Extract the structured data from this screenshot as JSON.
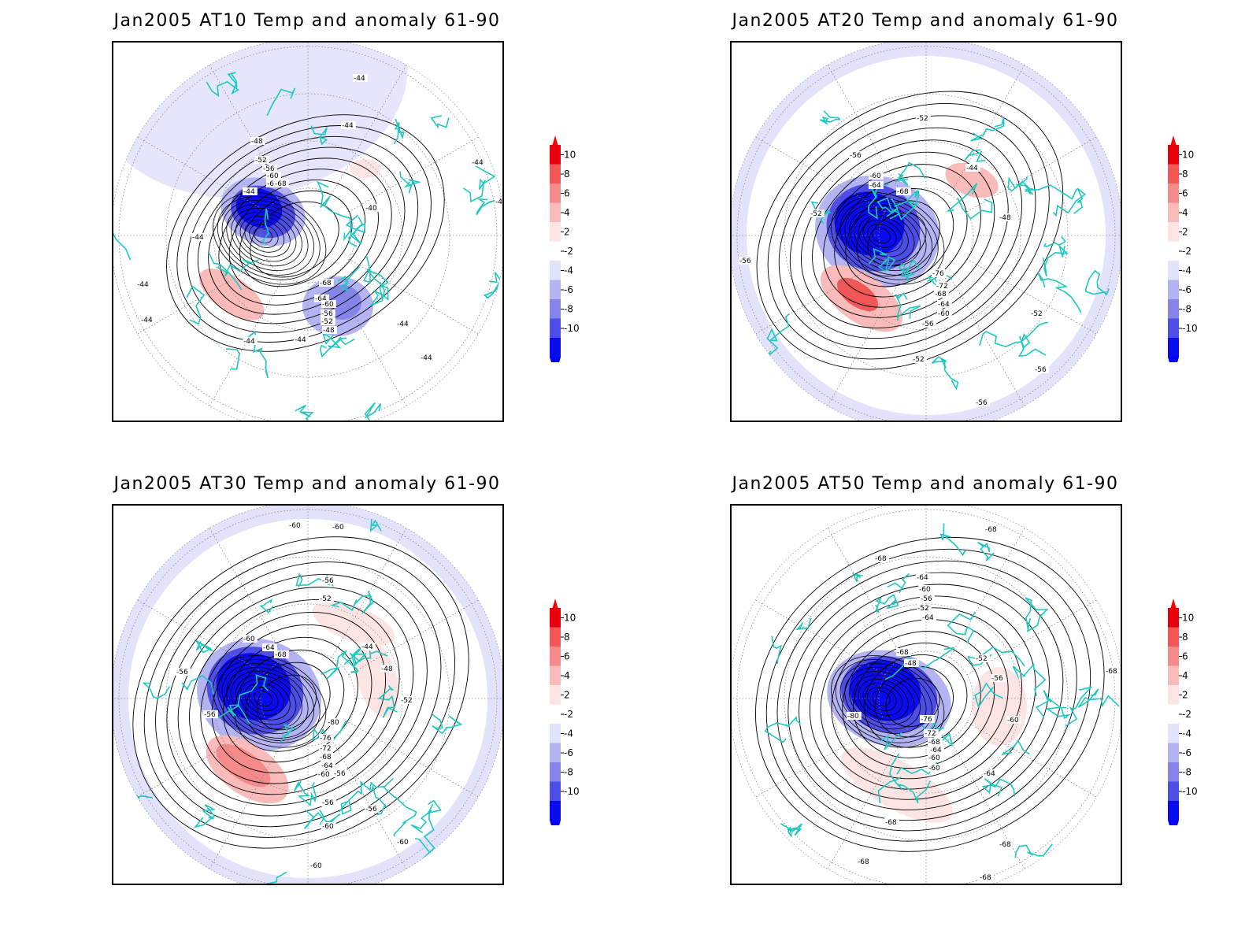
{
  "panels": [
    {
      "title": "Jan2005 AT10 Temp and anomaly 61-90",
      "contour_labels": [
        "-44",
        "-44",
        "-44",
        "-44",
        "-44",
        "-44",
        "-44",
        "-44",
        "-44",
        "-44",
        "-44",
        "-44",
        "-48",
        "-52",
        "-56",
        "-60",
        "-64",
        "-68",
        "-68",
        "-64",
        "-60",
        "-56",
        "-52",
        "-48",
        "-40"
      ],
      "anomaly_features": [
        {
          "sign": "neg",
          "level": 10
        },
        {
          "sign": "neg",
          "level": 8
        },
        {
          "sign": "pos",
          "level": 4
        },
        {
          "sign": "neg",
          "level": 4
        }
      ]
    },
    {
      "title": "Jan2005 AT20 Temp and anomaly 61-90",
      "contour_labels": [
        "-52",
        "-56",
        "-60",
        "-64",
        "-68",
        "-44",
        "-48",
        "-52",
        "-56",
        "-76",
        "-72",
        "-68",
        "-64",
        "-60",
        "-56",
        "-52",
        "-52",
        "-56",
        "-56"
      ],
      "anomaly_features": [
        {
          "sign": "neg",
          "level": 10
        },
        {
          "sign": "pos",
          "level": 6
        },
        {
          "sign": "pos",
          "level": 2
        },
        {
          "sign": "neg",
          "level": 2
        }
      ]
    },
    {
      "title": "Jan2005 AT30 Temp and anomaly 61-90",
      "contour_labels": [
        "-60",
        "-60",
        "-56",
        "-52",
        "-60",
        "-64",
        "-68",
        "-44",
        "-48",
        "-52",
        "-56",
        "-56",
        "-80",
        "-76",
        "-72",
        "-68",
        "-64",
        "-60",
        "-56",
        "-56",
        "-56",
        "-60",
        "-60",
        "-60"
      ],
      "anomaly_features": [
        {
          "sign": "neg",
          "level": 10
        },
        {
          "sign": "pos",
          "level": 4
        },
        {
          "sign": "pos",
          "level": 2
        },
        {
          "sign": "neg",
          "level": 2
        }
      ]
    },
    {
      "title": "Jan2005 AT50 Temp and anomaly 61-90",
      "contour_labels": [
        "-68",
        "-68",
        "-64",
        "-60",
        "-56",
        "-52",
        "-64",
        "-68",
        "-48",
        "-52",
        "-56",
        "-60",
        "-80",
        "-76",
        "-72",
        "-68",
        "-64",
        "-60",
        "-60",
        "-64",
        "-68",
        "-68",
        "-68",
        "-68",
        "-68"
      ],
      "anomaly_features": [
        {
          "sign": "neg",
          "level": 10
        },
        {
          "sign": "pos",
          "level": 2
        },
        {
          "sign": "neg",
          "level": 2
        }
      ]
    }
  ],
  "colorbar": {
    "ticks": [
      "10",
      "8",
      "6",
      "4",
      "2",
      "-2",
      "-4",
      "-6",
      "-8",
      "-10"
    ],
    "colors": [
      "#e8000b",
      "#f25656",
      "#f58a8a",
      "#f9baba",
      "#fde4e4",
      "#ffffff",
      "#e2e2fb",
      "#b4b4f2",
      "#8484ea",
      "#4e4ee6",
      "#0b0bf0"
    ],
    "arrow_top_color": "#ff0000",
    "arrow_bottom_color": "#0000ff"
  },
  "colors": {
    "coastline": "#1ec8c0",
    "contour": "#000000",
    "grid": "#888888"
  }
}
